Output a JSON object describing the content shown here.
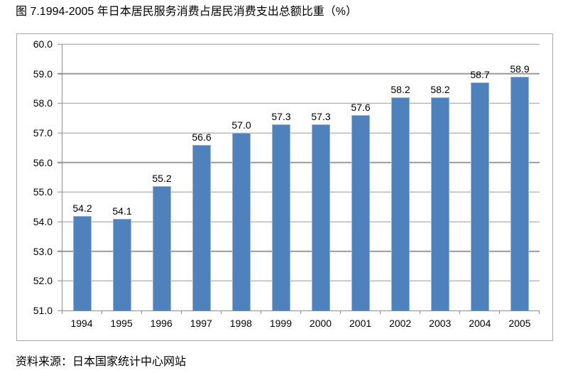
{
  "page": {
    "title": "图 7.1994-2005 年日本居民服务消费占居民消费支出总额比重（%）",
    "source": "资料来源：日本国家统计中心网站"
  },
  "chart_data": {
    "type": "bar",
    "title": "图 7.1994-2005 年日本居民服务消费占居民消费支出总额比重（%）",
    "categories": [
      "1994",
      "1995",
      "1996",
      "1997",
      "1998",
      "1999",
      "2000",
      "2001",
      "2002",
      "2003",
      "2004",
      "2005"
    ],
    "values": [
      54.2,
      54.1,
      55.2,
      56.6,
      57.0,
      57.3,
      57.3,
      57.6,
      58.2,
      58.2,
      58.7,
      58.9
    ],
    "xlabel": "",
    "ylabel": "",
    "ylim": [
      51.0,
      60.0
    ],
    "ytick_step": 1.0,
    "ytick_decimals": 1,
    "value_decimals": 1,
    "grid": true,
    "legend": "none",
    "annotation": "data labels above each bar",
    "colors": {
      "bar": "#4f81bd",
      "bar_border": "#9ab5d9",
      "gridline": "#9a9a9a",
      "axis": "#8c8c8c",
      "frame_border": "#a6a6a6",
      "text": "#000000",
      "background": "#ffffff"
    }
  }
}
